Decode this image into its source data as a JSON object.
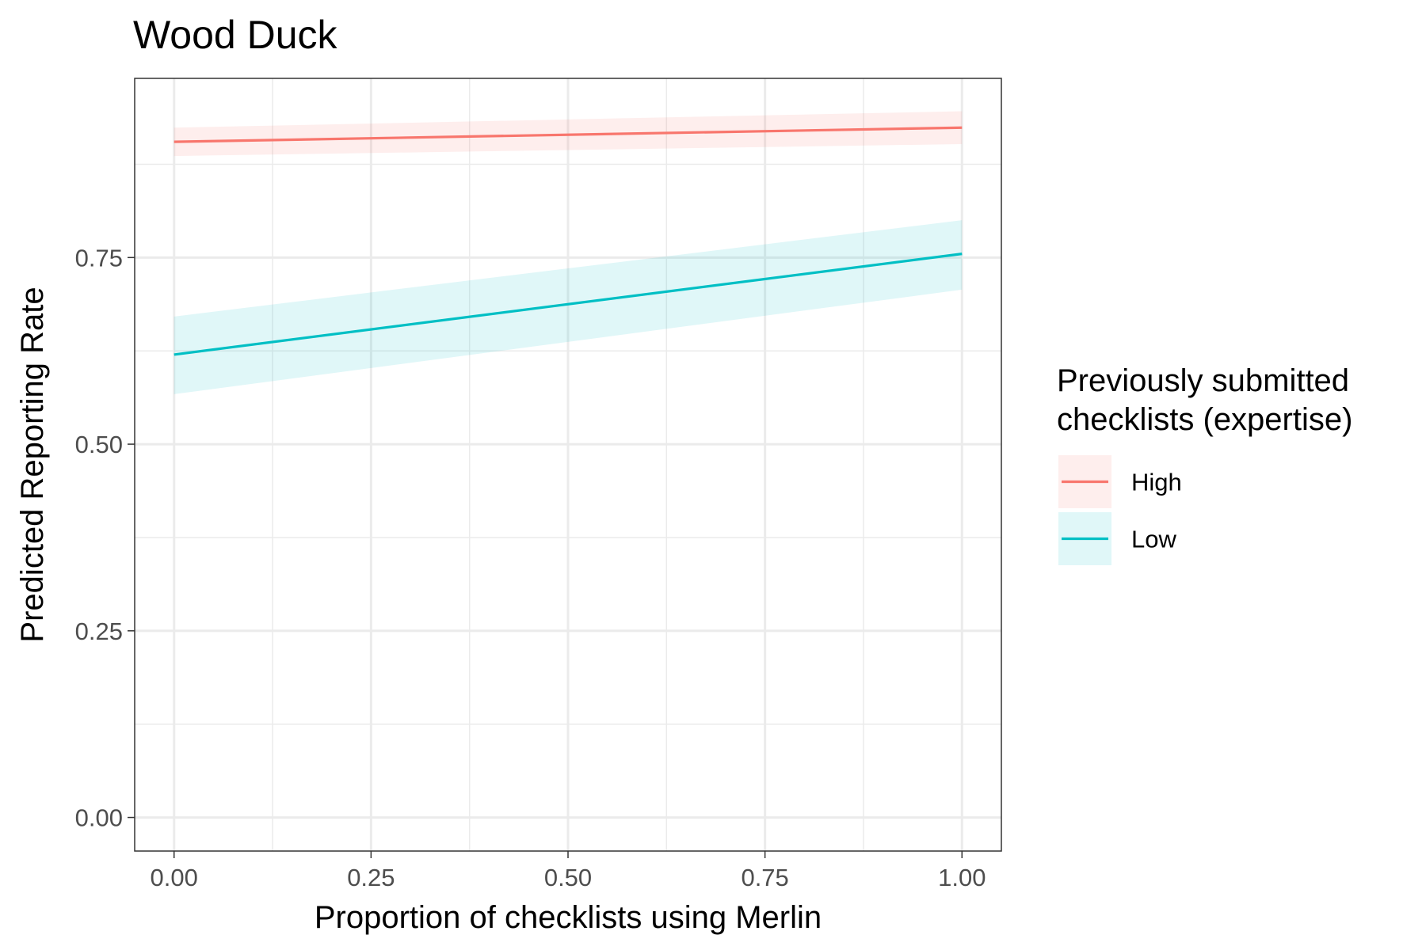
{
  "chart_data": {
    "type": "line",
    "title": "Wood Duck",
    "xlabel": "Proportion of checklists using Merlin",
    "ylabel": "Predicted Reporting Rate",
    "xlim": [
      -0.05,
      1.05
    ],
    "ylim": [
      -0.045,
      0.99
    ],
    "x_ticks": [
      0.0,
      0.25,
      0.5,
      0.75,
      1.0
    ],
    "x_tick_labels": [
      "0.00",
      "0.25",
      "0.50",
      "0.75",
      "1.00"
    ],
    "y_ticks": [
      0.0,
      0.25,
      0.5,
      0.75
    ],
    "y_tick_labels": [
      "0.00",
      "0.25",
      "0.50",
      "0.75"
    ],
    "grid": true,
    "legend": {
      "title_lines": [
        "Previously submitted",
        "checklists (expertise)"
      ],
      "position": "right"
    },
    "series": [
      {
        "name": "High",
        "color": "#F8766D",
        "x": [
          0.0,
          1.0
        ],
        "y": [
          0.905,
          0.924
        ],
        "lower": [
          0.886,
          0.902
        ],
        "upper": [
          0.924,
          0.946
        ]
      },
      {
        "name": "Low",
        "color": "#00BFC4",
        "x": [
          0.0,
          1.0
        ],
        "y": [
          0.62,
          0.755
        ],
        "lower": [
          0.567,
          0.707
        ],
        "upper": [
          0.671,
          0.8
        ]
      }
    ]
  }
}
